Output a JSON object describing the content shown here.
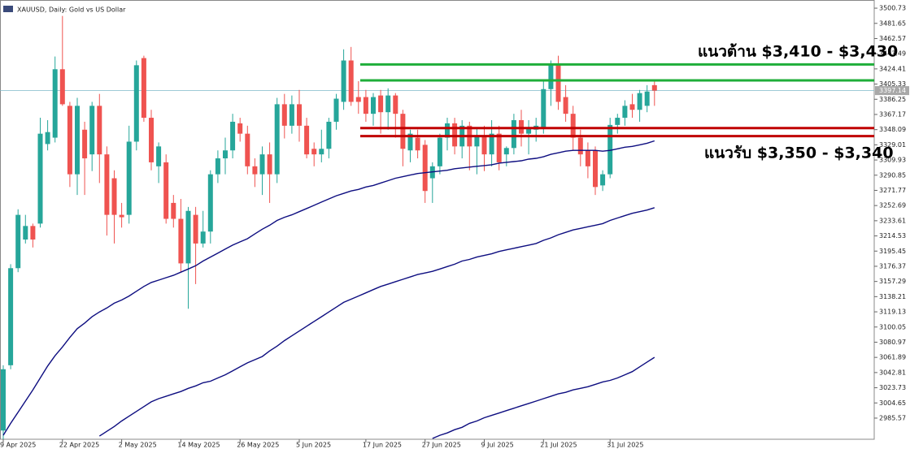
{
  "chart_data": {
    "type": "candlestick",
    "title": "XAUUSD, Daily: Gold vs US Dollar",
    "categories": [
      "9 Apr 2025",
      null,
      null,
      null,
      null,
      null,
      null,
      null,
      "22 Apr 2025",
      null,
      null,
      null,
      null,
      null,
      null,
      null,
      "2 May 2025",
      null,
      null,
      null,
      null,
      null,
      null,
      null,
      "14 May 2025",
      null,
      null,
      null,
      null,
      null,
      null,
      null,
      "26 May 2025",
      null,
      null,
      null,
      null,
      null,
      null,
      null,
      "5 Jun 2025",
      null,
      null,
      null,
      null,
      null,
      null,
      null,
      null,
      "17 Jun 2025",
      null,
      null,
      null,
      null,
      null,
      null,
      null,
      "27 Jun 2025",
      null,
      null,
      null,
      null,
      null,
      null,
      null,
      "9 Jul 2025",
      null,
      null,
      null,
      null,
      null,
      null,
      null,
      "21 Jul 2025",
      null,
      null,
      null,
      null,
      null,
      null,
      null,
      null,
      "31 Jul 2025",
      null,
      null,
      null,
      null,
      null,
      null
    ],
    "open": [
      2970,
      3052,
      3174,
      3210,
      3227,
      3230,
      3330,
      3338,
      3424,
      3378,
      3292,
      3348,
      3317,
      3378,
      3317,
      3287,
      3241,
      3241,
      3333,
      3438,
      3363,
      3302,
      3307,
      3256,
      3236,
      3180,
      3241,
      3205,
      3220,
      3292,
      3312,
      3322,
      3356,
      3343,
      3302,
      3292,
      3317,
      3292,
      3380,
      3353,
      3380,
      3353,
      3324,
      3317,
      3324,
      3358,
      3383,
      3435,
      3389,
      3389,
      3368,
      3391,
      3370,
      3391,
      3368,
      3322,
      3338,
      3329,
      3287,
      3302,
      3338,
      3356,
      3327,
      3353,
      3327,
      3340,
      3317,
      3343,
      3317,
      3325,
      3360,
      3343,
      3348,
      3351,
      3399,
      3429,
      3389,
      3368,
      3338,
      3322,
      3322,
      3278,
      3292,
      3354,
      3363,
      3380,
      3373,
      3378,
      3404
    ],
    "high": [
      3052,
      3179,
      3248,
      3241,
      3230,
      3363,
      3360,
      3440,
      3491,
      3383,
      3388,
      3358,
      3383,
      3393,
      3327,
      3297,
      3256,
      3353,
      3435,
      3441,
      3373,
      3332,
      3317,
      3266,
      3261,
      3251,
      3251,
      3246,
      3297,
      3322,
      3338,
      3368,
      3363,
      3353,
      3312,
      3327,
      3332,
      3388,
      3393,
      3391,
      3398,
      3363,
      3332,
      3348,
      3363,
      3393,
      3449,
      3452,
      3409,
      3398,
      3394,
      3398,
      3400,
      3394,
      3373,
      3348,
      3348,
      3335,
      3307,
      3343,
      3363,
      3363,
      3360,
      3358,
      3350,
      3353,
      3360,
      3353,
      3327,
      3368,
      3373,
      3360,
      3363,
      3409,
      3435,
      3441,
      3404,
      3378,
      3348,
      3332,
      3327,
      3297,
      3363,
      3368,
      3385,
      3393,
      3398,
      3404,
      3409
    ],
    "low": [
      2959,
      3047,
      3169,
      3205,
      3200,
      3225,
      3322,
      3332,
      3378,
      3276,
      3266,
      3266,
      3296,
      3281,
      3215,
      3205,
      3225,
      3230,
      3322,
      3358,
      3297,
      3281,
      3230,
      3225,
      3169,
      3123,
      3154,
      3200,
      3205,
      3281,
      3292,
      3312,
      3333,
      3292,
      3276,
      3266,
      3256,
      3281,
      3337,
      3343,
      3333,
      3312,
      3302,
      3307,
      3312,
      3348,
      3373,
      3378,
      3368,
      3358,
      3353,
      3343,
      3348,
      3338,
      3302,
      3307,
      3312,
      3256,
      3256,
      3292,
      3322,
      3317,
      3312,
      3297,
      3292,
      3296,
      3302,
      3297,
      3302,
      3317,
      3327,
      3317,
      3333,
      3343,
      3378,
      3373,
      3358,
      3322,
      3302,
      3287,
      3266,
      3271,
      3287,
      3343,
      3353,
      3363,
      3358,
      3370,
      3378
    ],
    "close": [
      3047,
      3174,
      3241,
      3227,
      3210,
      3343,
      3345,
      3424,
      3380,
      3292,
      3378,
      3312,
      3378,
      3317,
      3241,
      3241,
      3238,
      3333,
      3429,
      3363,
      3307,
      3327,
      3236,
      3236,
      3180,
      3246,
      3205,
      3220,
      3292,
      3312,
      3322,
      3358,
      3343,
      3302,
      3292,
      3317,
      3292,
      3380,
      3353,
      3380,
      3353,
      3317,
      3317,
      3324,
      3358,
      3387,
      3435,
      3383,
      3383,
      3368,
      3389,
      3370,
      3391,
      3368,
      3324,
      3343,
      3322,
      3271,
      3302,
      3338,
      3356,
      3327,
      3353,
      3327,
      3340,
      3317,
      3343,
      3307,
      3325,
      3360,
      3343,
      3351,
      3353,
      3399,
      3429,
      3383,
      3368,
      3338,
      3317,
      3302,
      3276,
      3292,
      3354,
      3363,
      3378,
      3373,
      3394,
      3396,
      3397.14
    ],
    "up_color": "#26a69a",
    "down_color": "#ef5350",
    "series": [
      {
        "color": "#0d0d80",
        "values": [
          2964,
          2979,
          2993,
          3007,
          3021,
          3036,
          3051,
          3064,
          3075,
          3087,
          3098,
          3105,
          3113,
          3119,
          3124,
          3130,
          3134,
          3139,
          3145,
          3151,
          3156,
          3159,
          3162,
          3165,
          3169,
          3173,
          3177,
          3183,
          3188,
          3193,
          3198,
          3203,
          3207,
          3211,
          3217,
          3223,
          3228,
          3234,
          3238,
          3241,
          3245,
          3249,
          3253,
          3257,
          3261,
          3265,
          3268,
          3271,
          3273,
          3276,
          3278,
          3281,
          3284,
          3287,
          3289,
          3291,
          3293,
          3294,
          3295,
          3296,
          3297,
          3299,
          3300,
          3301,
          3302,
          3303,
          3304,
          3306,
          3307,
          3308,
          3309,
          3311,
          3312,
          3314,
          3317,
          3319,
          3321,
          3322,
          3322,
          3322,
          3322,
          3321,
          3322,
          3324,
          3326,
          3327,
          3329,
          3331,
          3334
        ]
      },
      {
        "color": "#0d0d80",
        "values": [
          null,
          null,
          null,
          null,
          null,
          null,
          null,
          null,
          null,
          null,
          null,
          null,
          null,
          2963,
          2969,
          2975,
          2982,
          2988,
          2994,
          3000,
          3006,
          3010,
          3013,
          3016,
          3019,
          3023,
          3026,
          3030,
          3032,
          3036,
          3040,
          3045,
          3050,
          3055,
          3059,
          3063,
          3070,
          3076,
          3083,
          3089,
          3095,
          3101,
          3107,
          3113,
          3119,
          3125,
          3131,
          3135,
          3139,
          3143,
          3147,
          3151,
          3154,
          3157,
          3160,
          3163,
          3166,
          3168,
          3170,
          3173,
          3176,
          3179,
          3183,
          3185,
          3188,
          3190,
          3192,
          3195,
          3197,
          3199,
          3201,
          3203,
          3205,
          3209,
          3212,
          3216,
          3219,
          3222,
          3224,
          3226,
          3228,
          3230,
          3234,
          3237,
          3240,
          3243,
          3245,
          3247,
          3250
        ]
      },
      {
        "color": "#0d0d80",
        "values": [
          null,
          null,
          null,
          null,
          null,
          null,
          null,
          null,
          null,
          null,
          null,
          null,
          null,
          null,
          null,
          null,
          null,
          null,
          null,
          null,
          null,
          null,
          null,
          null,
          null,
          null,
          null,
          null,
          null,
          null,
          null,
          null,
          null,
          null,
          null,
          null,
          null,
          null,
          null,
          null,
          null,
          null,
          null,
          null,
          null,
          null,
          null,
          null,
          null,
          null,
          null,
          null,
          null,
          null,
          null,
          null,
          null,
          null,
          2960,
          2964,
          2967,
          2971,
          2974,
          2979,
          2982,
          2986,
          2989,
          2992,
          2995,
          2998,
          3001,
          3004,
          3007,
          3010,
          3013,
          3016,
          3018,
          3021,
          3023,
          3025,
          3028,
          3031,
          3033,
          3036,
          3040,
          3044,
          3050,
          3056,
          3062
        ]
      }
    ],
    "levels": [
      {
        "value": 3430,
        "color": "#1fae3a"
      },
      {
        "value": 3410,
        "color": "#1fae3a"
      },
      {
        "value": 3350,
        "color": "#c00000"
      },
      {
        "value": 3340,
        "color": "#c00000"
      }
    ],
    "annotations": [
      "แนวต้าน $3,410 - $3,430",
      "แนวรับ $3,350 - $3,340"
    ],
    "last_price": 3397.14,
    "ylim": [
      2959,
      3511
    ],
    "yticks": [
      3500.73,
      3481.65,
      3462.57,
      3443.49,
      3424.41,
      3405.33,
      3386.25,
      3367.17,
      3348.09,
      3329.01,
      3309.93,
      3290.85,
      3271.77,
      3252.69,
      3233.61,
      3214.53,
      3195.45,
      3176.37,
      3157.29,
      3138.21,
      3119.13,
      3100.05,
      3080.97,
      3061.89,
      3042.81,
      3023.73,
      3004.65,
      2985.57
    ]
  }
}
